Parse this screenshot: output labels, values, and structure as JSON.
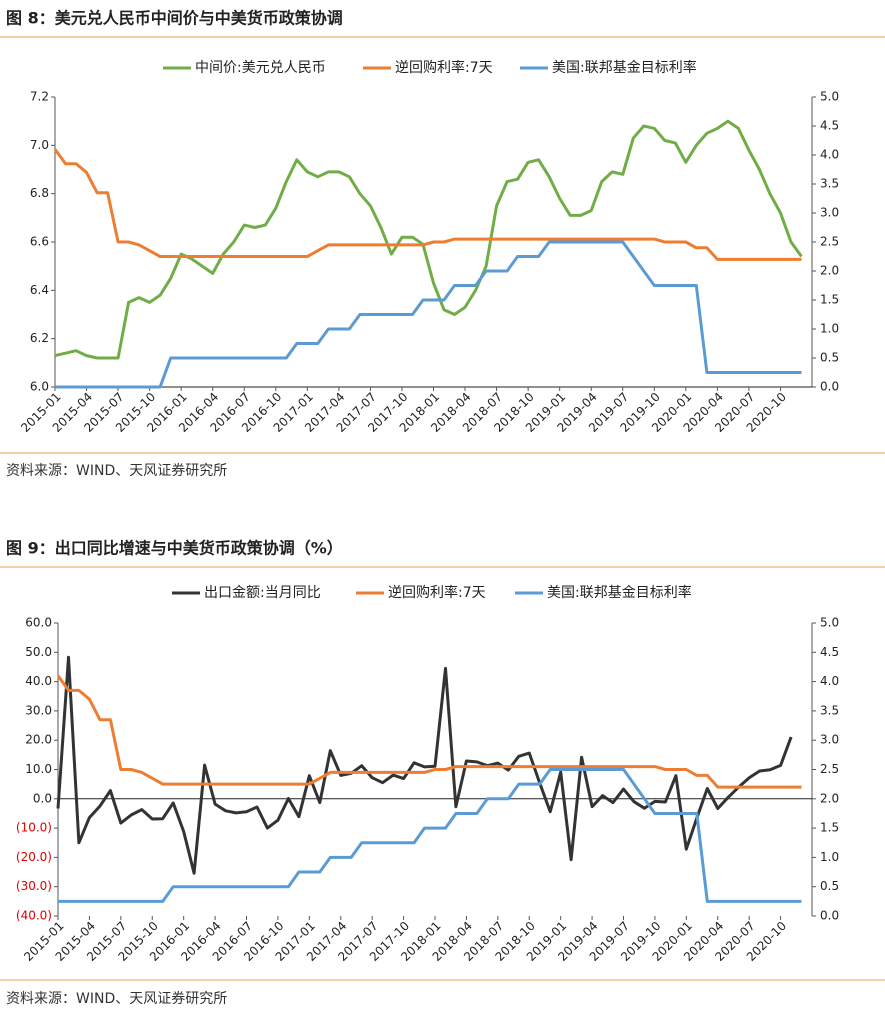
{
  "chart_data": [
    {
      "type": "line",
      "title": "图 8：美元兑人民币中间价与中美货币政策协调",
      "source": "资料来源：WIND、天风证券研究所",
      "categories": [
        "2015-01",
        null,
        null,
        "2015-04",
        null,
        null,
        "2015-07",
        null,
        null,
        "2015-10",
        null,
        null,
        "2016-01",
        null,
        null,
        "2016-04",
        null,
        null,
        "2016-07",
        null,
        null,
        "2016-10",
        null,
        null,
        "2017-01",
        null,
        null,
        "2017-04",
        null,
        null,
        "2017-07",
        null,
        null,
        "2017-10",
        null,
        null,
        "2018-01",
        null,
        null,
        "2018-04",
        null,
        null,
        "2018-07",
        null,
        null,
        "2018-10",
        null,
        null,
        "2019-01",
        null,
        null,
        "2019-04",
        null,
        null,
        "2019-07",
        null,
        null,
        "2019-10",
        null,
        null,
        "2020-01",
        null,
        null,
        "2020-04",
        null,
        null,
        "2020-07",
        null,
        null,
        "2020-10",
        null,
        null
      ],
      "ylim": [
        6.0,
        7.2
      ],
      "yticks": [
        {
          "value": 6.0,
          "label": "6.0"
        },
        {
          "value": 6.2,
          "label": "6.2"
        },
        {
          "value": 6.4,
          "label": "6.4"
        },
        {
          "value": 6.6,
          "label": "6.6"
        },
        {
          "value": 6.8,
          "label": "6.8"
        },
        {
          "value": 7.0,
          "label": "7.0"
        },
        {
          "value": 7.2,
          "label": "7.2"
        }
      ],
      "y2lim": [
        0,
        5
      ],
      "y2ticks": [
        {
          "value": 0,
          "label": "0.0"
        },
        {
          "value": 0.5,
          "label": "0.5"
        },
        {
          "value": 1,
          "label": "1.0"
        },
        {
          "value": 1.5,
          "label": "1.5"
        },
        {
          "value": 2,
          "label": "2.0"
        },
        {
          "value": 2.5,
          "label": "2.5"
        },
        {
          "value": 3,
          "label": "3.0"
        },
        {
          "value": 3.5,
          "label": "3.5"
        },
        {
          "value": 4,
          "label": "4.0"
        },
        {
          "value": 4.5,
          "label": "4.5"
        },
        {
          "value": 5,
          "label": "5.0"
        }
      ],
      "legend": "top",
      "series": [
        {
          "name": "中间价:美元兑人民币",
          "color": "#70ad47",
          "values": [
            6.13,
            6.14,
            6.15,
            6.13,
            6.12,
            6.12,
            6.12,
            6.35,
            6.37,
            6.35,
            6.38,
            6.45,
            6.55,
            6.53,
            6.5,
            6.47,
            6.55,
            6.6,
            6.67,
            6.66,
            6.67,
            6.74,
            6.85,
            6.94,
            6.89,
            6.87,
            6.89,
            6.89,
            6.87,
            6.8,
            6.75,
            6.66,
            6.55,
            6.62,
            6.62,
            6.59,
            6.43,
            6.32,
            6.3,
            6.33,
            6.4,
            6.5,
            6.75,
            6.85,
            6.86,
            6.93,
            6.94,
            6.87,
            6.78,
            6.71,
            6.71,
            6.73,
            6.85,
            6.89,
            6.88,
            7.03,
            7.08,
            7.07,
            7.02,
            7.01,
            6.93,
            7.0,
            7.05,
            7.07,
            7.1,
            7.07,
            6.98,
            6.9,
            6.8,
            6.72,
            6.6,
            6.54
          ]
        },
        {
          "name": "逆回购利率:7天",
          "color": "#ed7d31",
          "axis": "y2",
          "values": [
            4.1,
            3.85,
            3.85,
            3.7,
            3.35,
            3.35,
            2.5,
            2.5,
            2.45,
            2.35,
            2.25,
            2.25,
            2.25,
            2.25,
            2.25,
            2.25,
            2.25,
            2.25,
            2.25,
            2.25,
            2.25,
            2.25,
            2.25,
            2.25,
            2.25,
            2.35,
            2.45,
            2.45,
            2.45,
            2.45,
            2.45,
            2.45,
            2.45,
            2.45,
            2.45,
            2.45,
            2.5,
            2.5,
            2.55,
            2.55,
            2.55,
            2.55,
            2.55,
            2.55,
            2.55,
            2.55,
            2.55,
            2.55,
            2.55,
            2.55,
            2.55,
            2.55,
            2.55,
            2.55,
            2.55,
            2.55,
            2.55,
            2.55,
            2.5,
            2.5,
            2.5,
            2.4,
            2.4,
            2.2,
            2.2,
            2.2,
            2.2,
            2.2,
            2.2,
            2.2,
            2.2,
            2.2
          ]
        },
        {
          "name": "美国:联邦基金目标利率",
          "color": "#5b9bd5",
          "axis": "y2",
          "values": [
            0,
            0,
            0,
            0,
            0,
            0,
            0,
            0,
            0,
            0,
            0,
            0.5,
            0.5,
            0.5,
            0.5,
            0.5,
            0.5,
            0.5,
            0.5,
            0.5,
            0.5,
            0.5,
            0.5,
            0.75,
            0.75,
            0.75,
            1,
            1,
            1,
            1.25,
            1.25,
            1.25,
            1.25,
            1.25,
            1.25,
            1.5,
            1.5,
            1.5,
            1.75,
            1.75,
            1.75,
            2,
            2,
            2,
            2.25,
            2.25,
            2.25,
            2.5,
            2.5,
            2.5,
            2.5,
            2.5,
            2.5,
            2.5,
            2.5,
            2.25,
            2,
            1.75,
            1.75,
            1.75,
            1.75,
            1.75,
            0.25,
            0.25,
            0.25,
            0.25,
            0.25,
            0.25,
            0.25,
            0.25,
            0.25,
            0.25
          ]
        }
      ]
    },
    {
      "type": "line",
      "title": "图 9：出口同比增速与中美货币政策协调（%）",
      "source": "资料来源：WIND、天风证券研究所",
      "categories": [
        "2015-01",
        null,
        null,
        "2015-04",
        null,
        null,
        "2015-07",
        null,
        null,
        "2015-10",
        null,
        null,
        "2016-01",
        null,
        null,
        "2016-04",
        null,
        null,
        "2016-07",
        null,
        null,
        "2016-10",
        null,
        null,
        "2017-01",
        null,
        null,
        "2017-04",
        null,
        null,
        "2017-07",
        null,
        null,
        "2017-10",
        null,
        null,
        "2018-01",
        null,
        null,
        "2018-04",
        null,
        null,
        "2018-07",
        null,
        null,
        "2018-10",
        null,
        null,
        "2019-01",
        null,
        null,
        "2019-04",
        null,
        null,
        "2019-07",
        null,
        null,
        "2019-10",
        null,
        null,
        "2020-01",
        null,
        null,
        "2020-04",
        null,
        null,
        "2020-07",
        null,
        null,
        "2020-10",
        null,
        null
      ],
      "ylim": [
        -40,
        60
      ],
      "yticks": [
        {
          "value": -40,
          "label": "(40.0)"
        },
        {
          "value": -30,
          "label": "(30.0)"
        },
        {
          "value": -20,
          "label": "(20.0)"
        },
        {
          "value": -10,
          "label": "(10.0)"
        },
        {
          "value": 0,
          "label": "0.0"
        },
        {
          "value": 10,
          "label": "10.0"
        },
        {
          "value": 20,
          "label": "20.0"
        },
        {
          "value": 30,
          "label": "30.0"
        },
        {
          "value": 40,
          "label": "40.0"
        },
        {
          "value": 50,
          "label": "50.0"
        },
        {
          "value": 60,
          "label": "60.0"
        }
      ],
      "negative_tick_color": "#e00000",
      "zero_line": true,
      "y2lim": [
        0,
        5
      ],
      "y2ticks": [
        {
          "value": 0,
          "label": "0.0"
        },
        {
          "value": 0.5,
          "label": "0.5"
        },
        {
          "value": 1,
          "label": "1.0"
        },
        {
          "value": 1.5,
          "label": "1.5"
        },
        {
          "value": 2,
          "label": "2.0"
        },
        {
          "value": 2.5,
          "label": "2.5"
        },
        {
          "value": 3,
          "label": "3.0"
        },
        {
          "value": 3.5,
          "label": "3.5"
        },
        {
          "value": 4,
          "label": "4.0"
        },
        {
          "value": 4.5,
          "label": "4.5"
        },
        {
          "value": 5,
          "label": "5.0"
        }
      ],
      "legend": "top",
      "series": [
        {
          "name": "出口金额:当月同比",
          "color": "#333333",
          "values": [
            -3.3,
            48.3,
            -15,
            -6.4,
            -2.5,
            2.8,
            -8.3,
            -5.5,
            -3.7,
            -6.9,
            -6.8,
            -1.4,
            -11.2,
            -25.4,
            11.5,
            -1.8,
            -4.1,
            -4.8,
            -4.4,
            -2.8,
            -10,
            -7.3,
            0.1,
            -6.1,
            7.9,
            -1.3,
            16.4,
            8,
            8.7,
            11.3,
            7.2,
            5.5,
            8.1,
            6.9,
            12.3,
            10.9,
            11.1,
            44.5,
            -2.7,
            12.9,
            12.6,
            11.3,
            12.2,
            9.8,
            14.5,
            15.6,
            5.4,
            -4.4,
            9.1,
            -20.8,
            14.2,
            -2.7,
            1.1,
            -1.3,
            3.3,
            -1,
            -3.2,
            -0.9,
            -1.1,
            7.9,
            -17.2,
            -6.6,
            3.5,
            -3.3,
            0.5,
            4.0,
            7.2,
            9.5,
            9.9,
            11.4,
            21.1,
            null
          ]
        },
        {
          "name": "逆回购利率:7天",
          "color": "#ed7d31",
          "axis": "y2",
          "values": [
            4.1,
            3.85,
            3.85,
            3.7,
            3.35,
            3.35,
            2.5,
            2.5,
            2.45,
            2.35,
            2.25,
            2.25,
            2.25,
            2.25,
            2.25,
            2.25,
            2.25,
            2.25,
            2.25,
            2.25,
            2.25,
            2.25,
            2.25,
            2.25,
            2.25,
            2.35,
            2.45,
            2.45,
            2.45,
            2.45,
            2.45,
            2.45,
            2.45,
            2.45,
            2.45,
            2.45,
            2.5,
            2.5,
            2.55,
            2.55,
            2.55,
            2.55,
            2.55,
            2.55,
            2.55,
            2.55,
            2.55,
            2.55,
            2.55,
            2.55,
            2.55,
            2.55,
            2.55,
            2.55,
            2.55,
            2.55,
            2.55,
            2.55,
            2.5,
            2.5,
            2.5,
            2.4,
            2.4,
            2.2,
            2.2,
            2.2,
            2.2,
            2.2,
            2.2,
            2.2,
            2.2,
            2.2
          ]
        },
        {
          "name": "美国:联邦基金目标利率",
          "color": "#5b9bd5",
          "axis": "y2",
          "values": [
            0.25,
            0.25,
            0.25,
            0.25,
            0.25,
            0.25,
            0.25,
            0.25,
            0.25,
            0.25,
            0.25,
            0.5,
            0.5,
            0.5,
            0.5,
            0.5,
            0.5,
            0.5,
            0.5,
            0.5,
            0.5,
            0.5,
            0.5,
            0.75,
            0.75,
            0.75,
            1,
            1,
            1,
            1.25,
            1.25,
            1.25,
            1.25,
            1.25,
            1.25,
            1.5,
            1.5,
            1.5,
            1.75,
            1.75,
            1.75,
            2,
            2,
            2,
            2.25,
            2.25,
            2.25,
            2.5,
            2.5,
            2.5,
            2.5,
            2.5,
            2.5,
            2.5,
            2.5,
            2.25,
            2,
            1.75,
            1.75,
            1.75,
            1.75,
            1.75,
            0.25,
            0.25,
            0.25,
            0.25,
            0.25,
            0.25,
            0.25,
            0.25,
            0.25,
            0.25
          ]
        }
      ]
    }
  ]
}
